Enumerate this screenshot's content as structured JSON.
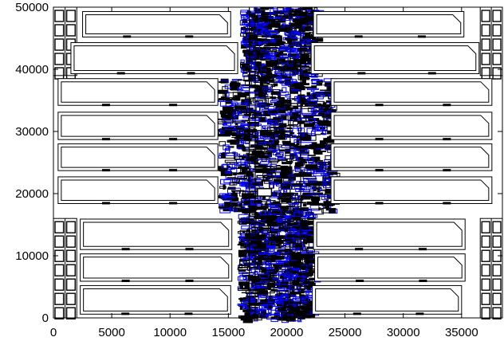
{
  "chart_data": {
    "type": "layout-plot",
    "title": "",
    "xlabel": "",
    "ylabel": "",
    "xlim": [
      0,
      38500
    ],
    "ylim": [
      0,
      50000
    ],
    "x_ticks": [
      0,
      5000,
      10000,
      15000,
      20000,
      25000,
      30000,
      35000
    ],
    "x_tick_labels": [
      "0",
      "5000",
      "10000",
      "15000",
      "20000",
      "25000",
      "30000",
      "35000"
    ],
    "y_ticks": [
      0,
      10000,
      20000,
      30000,
      40000,
      50000
    ],
    "y_tick_labels": [
      "0",
      "10000",
      "20000",
      "30000",
      "40000",
      "50000"
    ],
    "grid": false,
    "colors": {
      "outline": "#000000",
      "routing": "#0000ff",
      "dense": "#000000",
      "background": "#ffffff"
    },
    "blocks": [
      {
        "name": "block-left-1",
        "x0": 2300,
        "y0": 600,
        "x1": 15200,
        "y1": 5200,
        "corner": "right-top"
      },
      {
        "name": "block-left-2",
        "x0": 2300,
        "y0": 5900,
        "x1": 15300,
        "y1": 10300,
        "corner": "right-top"
      },
      {
        "name": "block-left-3",
        "x0": 2300,
        "y0": 11000,
        "x1": 15300,
        "y1": 15900,
        "corner": "right-top"
      },
      {
        "name": "block-left-4",
        "x0": 400,
        "y0": 18400,
        "x1": 14100,
        "y1": 22700,
        "corner": "right-top"
      },
      {
        "name": "block-left-5",
        "x0": 400,
        "y0": 23700,
        "x1": 14100,
        "y1": 28000,
        "corner": "right-top"
      },
      {
        "name": "block-left-6",
        "x0": 400,
        "y0": 28700,
        "x1": 14100,
        "y1": 33100,
        "corner": "right-top"
      },
      {
        "name": "block-left-7",
        "x0": 400,
        "y0": 34200,
        "x1": 14100,
        "y1": 38500,
        "corner": "right-top"
      },
      {
        "name": "block-left-8",
        "x0": 1500,
        "y0": 39300,
        "x1": 15800,
        "y1": 44300,
        "corner": "right-top"
      },
      {
        "name": "block-left-9",
        "x0": 2500,
        "y0": 45200,
        "x1": 15200,
        "y1": 49300,
        "corner": "right-top"
      },
      {
        "name": "block-right-1",
        "x0": 22200,
        "y0": 600,
        "x1": 35000,
        "y1": 5200,
        "corner": "right-top"
      },
      {
        "name": "block-right-2",
        "x0": 22400,
        "y0": 5900,
        "x1": 35300,
        "y1": 10300,
        "corner": "right-top"
      },
      {
        "name": "block-right-3",
        "x0": 22300,
        "y0": 11000,
        "x1": 35300,
        "y1": 15900,
        "corner": "right-top"
      },
      {
        "name": "block-right-4",
        "x0": 23800,
        "y0": 18400,
        "x1": 37600,
        "y1": 22700,
        "corner": "right-top"
      },
      {
        "name": "block-right-5",
        "x0": 23800,
        "y0": 23700,
        "x1": 37600,
        "y1": 28000,
        "corner": "right-top"
      },
      {
        "name": "block-right-6",
        "x0": 23800,
        "y0": 28700,
        "x1": 37600,
        "y1": 33100,
        "corner": "right-top"
      },
      {
        "name": "block-right-7",
        "x0": 23800,
        "y0": 34200,
        "x1": 37600,
        "y1": 38500,
        "corner": "right-top"
      },
      {
        "name": "block-right-8",
        "x0": 22100,
        "y0": 39300,
        "x1": 36500,
        "y1": 44300,
        "corner": "right-top"
      },
      {
        "name": "block-right-9",
        "x0": 22300,
        "y0": 45200,
        "x1": 35200,
        "y1": 49300,
        "corner": "right-top"
      }
    ],
    "io_columns": [
      {
        "name": "io-left-lower",
        "x0": 0,
        "x1": 2000,
        "y0": 0,
        "y1": 16000
      },
      {
        "name": "io-left-upper",
        "x0": 0,
        "x1": 2000,
        "y0": 39000,
        "y1": 50000
      },
      {
        "name": "io-right-lower",
        "x0": 36600,
        "x1": 38500,
        "y0": 0,
        "y1": 16000
      },
      {
        "name": "io-right-upper",
        "x0": 36600,
        "x1": 38500,
        "y0": 39000,
        "y1": 50000
      }
    ],
    "channel": {
      "x_top": [
        16000,
        22500
      ],
      "x_mid": [
        14100,
        23800
      ],
      "x_bottom": [
        15800,
        22000
      ],
      "y_mid_top": 38500,
      "y_mid_bottom": 17500
    },
    "macro": {
      "x0": 17500,
      "y0": 19600,
      "x1": 18700,
      "y1": 20800
    }
  }
}
